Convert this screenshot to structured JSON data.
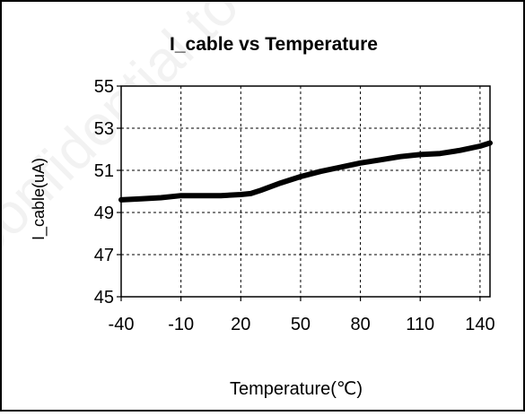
{
  "chart_data": {
    "type": "line",
    "title": "I_cable vs Temperature",
    "xlabel": "Temperature(℃)",
    "ylabel": "I_cable(uA)",
    "xlim": [
      -40,
      145
    ],
    "ylim": [
      45,
      55
    ],
    "xticks": [
      -40,
      -10,
      20,
      50,
      80,
      110,
      140
    ],
    "yticks": [
      45,
      47,
      49,
      51,
      53,
      55
    ],
    "grid": true,
    "legend": "none",
    "series": [
      {
        "color": "#000000",
        "x": [
          -40,
          -30,
          -20,
          -10,
          0,
          10,
          20,
          25,
          30,
          40,
          50,
          60,
          70,
          80,
          90,
          100,
          110,
          120,
          130,
          140,
          145
        ],
        "y": [
          49.6,
          49.65,
          49.7,
          49.8,
          49.8,
          49.8,
          49.85,
          49.9,
          50.05,
          50.4,
          50.7,
          50.95,
          51.15,
          51.35,
          51.5,
          51.65,
          51.75,
          51.8,
          51.95,
          52.15,
          52.3
        ]
      }
    ]
  },
  "watermark": "Confidential to 奧富科"
}
